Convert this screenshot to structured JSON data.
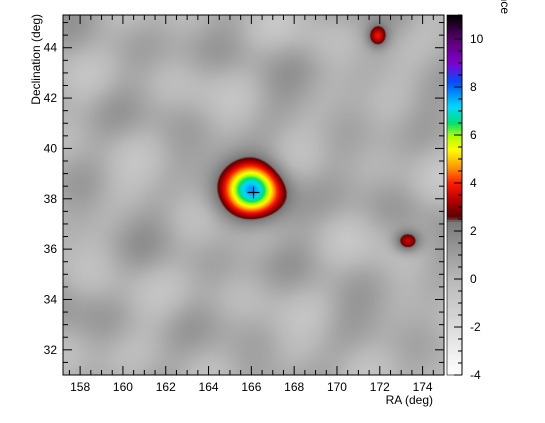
{
  "chart_data": {
    "type": "heatmap",
    "xlabel": "RA (deg)",
    "ylabel": "Declination (deg)",
    "zlabel": "Significance",
    "xlim": [
      157.2,
      175.0
    ],
    "ylim": [
      31.0,
      45.3
    ],
    "zlim": [
      -4,
      11
    ],
    "x_ticks": [
      158,
      160,
      162,
      164,
      166,
      168,
      170,
      172,
      174
    ],
    "y_ticks": [
      32,
      34,
      36,
      38,
      40,
      42,
      44
    ],
    "z_ticks": [
      -4,
      -2,
      0,
      2,
      4,
      6,
      8,
      10
    ],
    "x_tick_labels": [
      "158",
      "160",
      "162",
      "164",
      "166",
      "168",
      "170",
      "172",
      "174"
    ],
    "y_tick_labels": [
      "32",
      "34",
      "36",
      "38",
      "40",
      "42",
      "44"
    ],
    "z_tick_labels": [
      "-4",
      "-2",
      "0",
      "2",
      "4",
      "6",
      "8",
      "10"
    ],
    "colormap": [
      {
        "value": -4,
        "color": "#ffffff"
      },
      {
        "value": 0,
        "color": "#b9b9b9"
      },
      {
        "value": 2.4,
        "color": "#7a7a7a"
      },
      {
        "value": 2.6,
        "color": "#5a0000"
      },
      {
        "value": 3.3,
        "color": "#b40000"
      },
      {
        "value": 4.0,
        "color": "#ff1a00"
      },
      {
        "value": 4.7,
        "color": "#ff9a00"
      },
      {
        "value": 5.4,
        "color": "#ffff00"
      },
      {
        "value": 6.0,
        "color": "#a8ff00"
      },
      {
        "value": 6.5,
        "color": "#00e070"
      },
      {
        "value": 7.2,
        "color": "#00d8ff"
      },
      {
        "value": 8.2,
        "color": "#0050ff"
      },
      {
        "value": 9.0,
        "color": "#8000d0"
      },
      {
        "value": 10.0,
        "color": "#5a0070"
      },
      {
        "value": 11,
        "color": "#000000"
      }
    ],
    "background_level": 0.4,
    "background_variation": 1.0,
    "sources": [
      {
        "ra": 166.1,
        "dec": 38.3,
        "peak": 6.8,
        "sigma_ra": 1.05,
        "sigma_dec": 0.8
      },
      {
        "ra": 173.3,
        "dec": 36.3,
        "peak": 3.3,
        "sigma_ra": 0.42,
        "sigma_dec": 0.3
      },
      {
        "ra": 171.9,
        "dec": 44.45,
        "peak": 3.0,
        "sigma_ra": 0.34,
        "sigma_dec": 0.32
      }
    ],
    "marker": {
      "ra": 166.1,
      "dec": 38.25,
      "symbol": "+"
    }
  }
}
